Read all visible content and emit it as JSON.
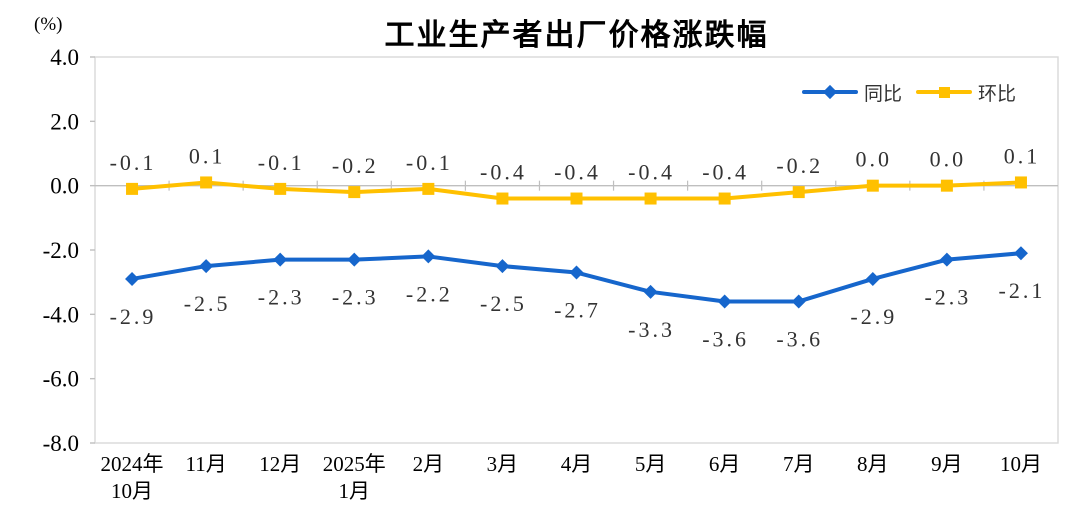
{
  "chart_data": {
    "type": "line",
    "title": "工业生产者出厂价格涨跌幅",
    "unit_label": "(%)",
    "categories": [
      "2024年\n10月",
      "11月",
      "12月",
      "2025年\n1月",
      "2月",
      "3月",
      "4月",
      "5月",
      "6月",
      "7月",
      "8月",
      "9月",
      "10月"
    ],
    "series": [
      {
        "id": "yoy",
        "name": "同比",
        "color": "#1666CC",
        "marker": "diamond",
        "label_position": "below",
        "values": [
          -2.9,
          -2.5,
          -2.3,
          -2.3,
          -2.2,
          -2.5,
          -2.7,
          -3.3,
          -3.6,
          -3.6,
          -2.9,
          -2.3,
          -2.1
        ],
        "labels": [
          "-2.9",
          "-2.5",
          "-2.3",
          "-2.3",
          "-2.2",
          "-2.5",
          "-2.7",
          "-3.3",
          "-3.6",
          "-3.6",
          "-2.9",
          "-2.3",
          "-2.1"
        ]
      },
      {
        "id": "mom",
        "name": "环比",
        "color": "#FFC000",
        "marker": "square",
        "label_position": "above",
        "values": [
          -0.1,
          0.1,
          -0.1,
          -0.2,
          -0.1,
          -0.4,
          -0.4,
          -0.4,
          -0.4,
          -0.2,
          0.0,
          0.0,
          0.1
        ],
        "labels": [
          "-0.1",
          "0.1",
          "-0.1",
          "-0.2",
          "-0.1",
          "-0.4",
          "-0.4",
          "-0.4",
          "-0.4",
          "-0.2",
          "0.0",
          "0.0",
          "0.1"
        ]
      }
    ],
    "y_axis": {
      "min": -8.0,
      "max": 4.0,
      "step": 2.0,
      "tick_labels": [
        "4.0",
        "2.0",
        "0.0",
        "-2.0",
        "-4.0",
        "-6.0",
        "-8.0"
      ]
    },
    "legend_position": "top-right",
    "grid": false,
    "colors": {
      "axis_border": "#D9D9D9",
      "zero_line": "#BFBFBF",
      "tick": "#BFBFBF",
      "data_label": "#333333",
      "text": "#000000",
      "background": "#FFFFFF"
    }
  }
}
